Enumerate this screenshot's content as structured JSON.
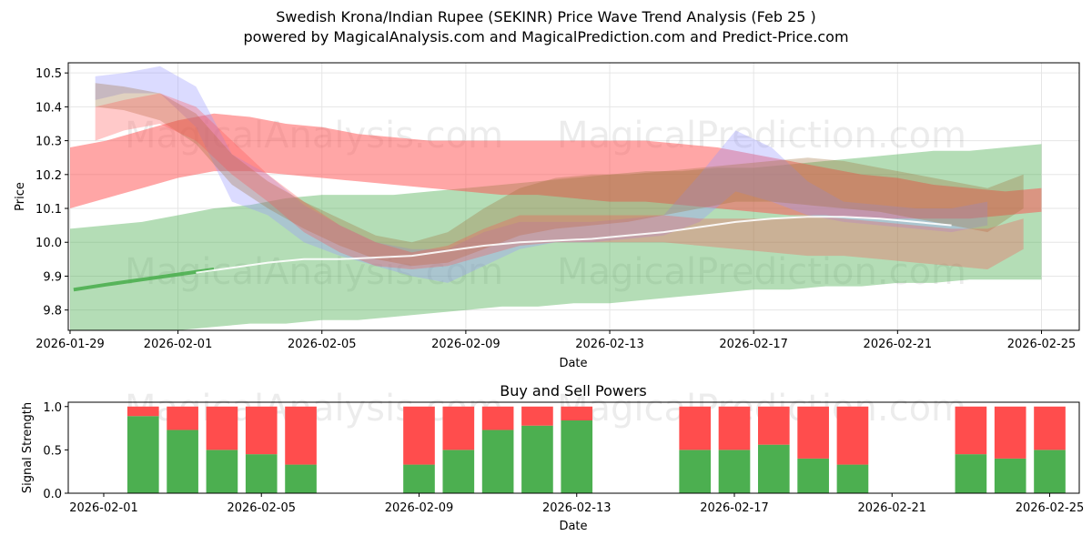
{
  "header": {
    "title_line1": "Swedish Krona/Indian Rupee (SEKINR) Price Wave Trend Analysis (Feb 25 )",
    "title_line2": "powered by MagicalAnalysis.com and MagicalPrediction.com and Predict-Price.com"
  },
  "watermarks": {
    "left": "MagicalAnalysis.com",
    "right": "MagicalPrediction.com"
  },
  "colors": {
    "green": "#4caf50",
    "red": "#ff4d4d",
    "blue": "#9999ff",
    "brown": "#a0703a",
    "white_line": "#ffffff"
  },
  "chart_data": [
    {
      "type": "area",
      "title": "",
      "xlabel": "Date",
      "ylabel": "Price",
      "xlim": [
        "2026-01-29",
        "2026-02-26"
      ],
      "ylim": [
        9.74,
        10.53
      ],
      "x_ticks": [
        "2026-01-29",
        "2026-02-01",
        "2026-02-05",
        "2026-02-09",
        "2026-02-13",
        "2026-02-17",
        "2026-02-21",
        "2026-02-25"
      ],
      "y_ticks": [
        9.8,
        9.9,
        10.0,
        10.1,
        10.2,
        10.3,
        10.4,
        10.5
      ],
      "grid": true,
      "series": [
        {
          "name": "wide green band",
          "color": "green",
          "opacity": 0.42,
          "x": [
            0,
            1,
            2,
            3,
            4,
            5,
            6,
            7,
            8,
            9,
            10,
            11,
            12,
            13,
            14,
            15,
            16,
            17,
            18,
            19,
            20,
            21,
            22,
            23,
            24,
            25,
            26,
            27
          ],
          "upper": [
            10.04,
            10.05,
            10.06,
            10.08,
            10.1,
            10.11,
            10.13,
            10.14,
            10.14,
            10.14,
            10.15,
            10.16,
            10.17,
            10.18,
            10.19,
            10.2,
            10.21,
            10.21,
            10.22,
            10.22,
            10.23,
            10.24,
            10.25,
            10.26,
            10.27,
            10.27,
            10.28,
            10.29
          ],
          "lower": [
            9.7,
            9.72,
            9.73,
            9.74,
            9.75,
            9.76,
            9.76,
            9.77,
            9.77,
            9.78,
            9.79,
            9.8,
            9.81,
            9.81,
            9.82,
            9.82,
            9.83,
            9.84,
            9.85,
            9.86,
            9.86,
            9.87,
            9.87,
            9.88,
            9.88,
            9.89,
            9.89,
            9.89
          ]
        },
        {
          "name": "red upper band",
          "color": "red",
          "opacity": 0.5,
          "x": [
            0,
            1,
            2,
            3,
            4,
            5,
            6,
            7,
            8,
            9,
            10,
            11,
            12,
            13,
            14,
            15,
            16,
            17,
            18,
            19,
            20,
            21,
            22,
            23,
            24,
            25,
            26,
            27
          ],
          "upper": [
            10.28,
            10.3,
            10.33,
            10.36,
            10.38,
            10.37,
            10.35,
            10.34,
            10.32,
            10.31,
            10.3,
            10.3,
            10.3,
            10.3,
            10.3,
            10.3,
            10.3,
            10.29,
            10.28,
            10.26,
            10.24,
            10.22,
            10.2,
            10.19,
            10.17,
            10.16,
            10.15,
            10.16
          ],
          "lower": [
            10.1,
            10.13,
            10.16,
            10.19,
            10.21,
            10.21,
            10.2,
            10.19,
            10.18,
            10.17,
            10.16,
            10.15,
            10.14,
            10.14,
            10.13,
            10.12,
            10.12,
            10.11,
            10.1,
            10.09,
            10.08,
            10.08,
            10.07,
            10.07,
            10.07,
            10.07,
            10.08,
            10.09
          ]
        },
        {
          "name": "blue wave band",
          "color": "blue",
          "opacity": 0.35,
          "x": [
            0.7,
            1.5,
            2.5,
            3.5,
            4.5,
            5.5,
            6.5,
            7.5,
            8.5,
            9.5,
            10.5,
            11.5,
            12.5,
            13.5,
            14.5,
            15.5,
            16.5,
            17.5,
            18.5,
            19.5,
            20.5,
            21.5,
            22.5,
            23.5,
            24.5,
            25.5
          ],
          "upper": [
            10.49,
            10.5,
            10.52,
            10.46,
            10.26,
            10.2,
            10.11,
            10.05,
            10.0,
            9.98,
            9.98,
            10.03,
            10.06,
            10.06,
            10.06,
            10.07,
            10.08,
            10.2,
            10.33,
            10.28,
            10.18,
            10.12,
            10.11,
            10.1,
            10.1,
            10.12
          ],
          "lower": [
            10.42,
            10.44,
            10.44,
            10.34,
            10.12,
            10.08,
            10.0,
            9.96,
            9.93,
            9.9,
            9.88,
            9.93,
            9.98,
            10.0,
            10.0,
            10.01,
            10.02,
            10.06,
            10.15,
            10.12,
            10.08,
            10.06,
            10.05,
            10.04,
            10.03,
            10.05
          ]
        },
        {
          "name": "brown wave band",
          "color": "brown",
          "opacity": 0.32,
          "x": [
            0.7,
            1.5,
            2.5,
            3.5,
            4.5,
            5.5,
            6.5,
            7.5,
            8.5,
            9.5,
            10.5,
            11.5,
            12.5,
            13.5,
            14.5,
            15.5,
            16.5,
            17.5,
            18.5,
            19.5,
            20.5,
            21.5,
            22.5,
            23.5,
            24.5,
            25.5,
            26.5
          ],
          "upper": [
            10.47,
            10.46,
            10.44,
            10.38,
            10.26,
            10.18,
            10.12,
            10.07,
            10.02,
            10.0,
            10.03,
            10.1,
            10.16,
            10.19,
            10.2,
            10.2,
            10.21,
            10.22,
            10.23,
            10.24,
            10.25,
            10.24,
            10.22,
            10.2,
            10.18,
            10.16,
            10.2
          ],
          "lower": [
            10.4,
            10.39,
            10.36,
            10.29,
            10.17,
            10.1,
            10.04,
            9.99,
            9.95,
            9.93,
            9.94,
            9.98,
            10.02,
            10.04,
            10.05,
            10.06,
            10.08,
            10.1,
            10.12,
            10.12,
            10.11,
            10.1,
            10.09,
            10.07,
            10.05,
            10.03,
            10.1
          ]
        },
        {
          "name": "pink lower wave band",
          "color": "red",
          "opacity": 0.3,
          "x": [
            0.7,
            1.5,
            2.5,
            3.5,
            4.5,
            5.5,
            6.5,
            7.5,
            8.5,
            9.5,
            10.5,
            11.5,
            12.5,
            13.5,
            14.5,
            15.5,
            16.5,
            17.5,
            18.5,
            19.5,
            20.5,
            21.5,
            22.5,
            23.5,
            24.5,
            25.5,
            26.5
          ],
          "upper": [
            10.4,
            10.42,
            10.44,
            10.4,
            10.3,
            10.2,
            10.12,
            10.05,
            10.0,
            9.97,
            9.99,
            10.04,
            10.08,
            10.08,
            10.08,
            10.08,
            10.08,
            10.07,
            10.07,
            10.07,
            10.08,
            10.07,
            10.06,
            10.05,
            10.04,
            10.04,
            10.07
          ],
          "lower": [
            10.3,
            10.33,
            10.35,
            10.3,
            10.2,
            10.12,
            10.03,
            9.97,
            9.93,
            9.92,
            9.93,
            9.96,
            9.99,
            10.0,
            10.0,
            10.0,
            10.0,
            9.99,
            9.98,
            9.97,
            9.96,
            9.96,
            9.95,
            9.94,
            9.93,
            9.92,
            9.98
          ]
        }
      ],
      "lines": [
        {
          "name": "green trend line",
          "color": "green",
          "x": [
            0.1,
            1.0,
            2.0,
            3.0,
            4.0
          ],
          "y": [
            9.86,
            9.875,
            9.89,
            9.905,
            9.92
          ]
        },
        {
          "name": "white price line",
          "color": "white_line",
          "x": [
            3.5,
            4.5,
            5.5,
            6.5,
            7.5,
            8.5,
            9.5,
            10.5,
            11.5,
            12.5,
            13.5,
            14.5,
            15.5,
            16.5,
            17.5,
            18.5,
            19.5,
            20.5,
            21.5,
            22.5,
            23.5,
            24.5
          ],
          "y": [
            9.91,
            9.925,
            9.94,
            9.95,
            9.95,
            9.955,
            9.96,
            9.975,
            9.99,
            10.0,
            10.005,
            10.01,
            10.02,
            10.03,
            10.045,
            10.06,
            10.07,
            10.075,
            10.075,
            10.07,
            10.06,
            10.05
          ]
        }
      ]
    },
    {
      "type": "bar",
      "title": "Buy and Sell Powers",
      "xlabel": "Date",
      "ylabel": "Signal Strength",
      "xlim": [
        "2026-01-31",
        "2026-02-26"
      ],
      "ylim": [
        0,
        1.05
      ],
      "x_ticks": [
        "2026-02-01",
        "2026-02-05",
        "2026-02-09",
        "2026-02-13",
        "2026-02-17",
        "2026-02-21",
        "2026-02-25"
      ],
      "y_ticks": [
        0.0,
        0.5,
        1.0
      ],
      "categories": [
        "2026-02-02",
        "2026-02-03",
        "2026-02-04",
        "2026-02-05",
        "2026-02-06",
        "2026-02-09",
        "2026-02-10",
        "2026-02-11",
        "2026-02-12",
        "2026-02-13",
        "2026-02-16",
        "2026-02-17",
        "2026-02-18",
        "2026-02-19",
        "2026-02-20",
        "2026-02-23",
        "2026-02-24",
        "2026-02-25"
      ],
      "series": [
        {
          "name": "Buy",
          "color": "green",
          "values": [
            0.89,
            0.73,
            0.5,
            0.45,
            0.33,
            0.33,
            0.5,
            0.73,
            0.78,
            0.84,
            0.5,
            0.5,
            0.56,
            0.4,
            0.33,
            0.45,
            0.4,
            0.5
          ]
        },
        {
          "name": "Sell",
          "color": "red",
          "values": [
            0.11,
            0.27,
            0.5,
            0.55,
            0.67,
            0.67,
            0.5,
            0.27,
            0.22,
            0.16,
            0.5,
            0.5,
            0.44,
            0.6,
            0.67,
            0.55,
            0.6,
            0.5
          ]
        }
      ]
    }
  ]
}
